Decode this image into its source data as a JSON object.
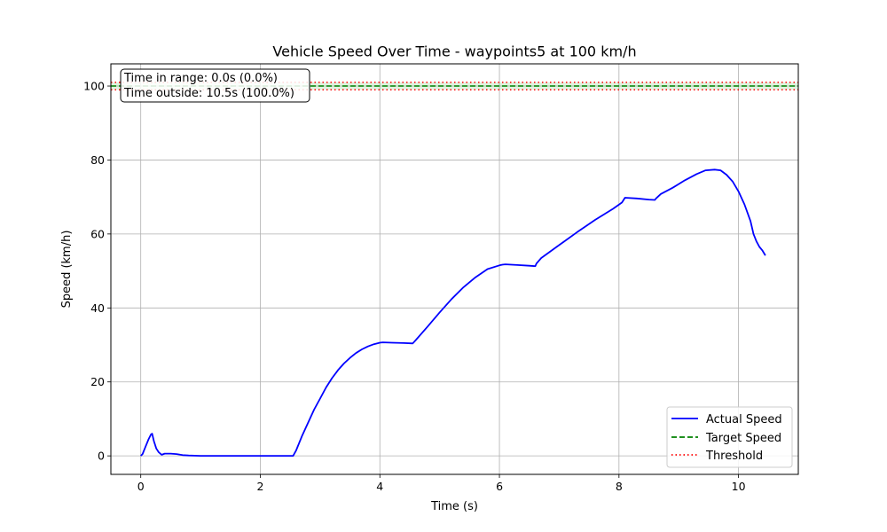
{
  "chart_data": {
    "type": "line",
    "title": "Vehicle Speed Over Time - waypoints5 at 100 km/h",
    "xlabel": "Time (s)",
    "ylabel": "Speed (km/h)",
    "xlim": [
      -0.5,
      11.0
    ],
    "ylim": [
      -5,
      106
    ],
    "xticks": [
      0,
      2,
      4,
      6,
      8,
      10
    ],
    "yticks": [
      0,
      20,
      40,
      60,
      80,
      100
    ],
    "grid": true,
    "legend_position": "lower-right",
    "series": [
      {
        "name": "Actual Speed",
        "color": "#0000ff",
        "style": "solid",
        "x": [
          0.0,
          0.03,
          0.08,
          0.13,
          0.17,
          0.19,
          0.22,
          0.26,
          0.3,
          0.35,
          0.4,
          0.45,
          0.5,
          0.6,
          0.7,
          0.8,
          1.0,
          1.5,
          2.0,
          2.3,
          2.55,
          2.6,
          2.7,
          2.8,
          2.9,
          3.0,
          3.1,
          3.2,
          3.3,
          3.4,
          3.5,
          3.6,
          3.7,
          3.8,
          3.9,
          4.0,
          4.05,
          4.2,
          4.4,
          4.55,
          4.6,
          4.8,
          5.0,
          5.2,
          5.4,
          5.6,
          5.8,
          6.0,
          6.05,
          6.1,
          6.3,
          6.5,
          6.6,
          6.62,
          6.7,
          7.0,
          7.3,
          7.6,
          7.9,
          8.05,
          8.1,
          8.3,
          8.5,
          8.6,
          8.62,
          8.7,
          8.9,
          9.1,
          9.3,
          9.45,
          9.6,
          9.7,
          9.8,
          9.9,
          10.0,
          10.1,
          10.2,
          10.25,
          10.3,
          10.35,
          10.4,
          10.45
        ],
        "y": [
          0,
          0.5,
          2.5,
          4.5,
          5.8,
          6.0,
          4.0,
          2.0,
          1.0,
          0.3,
          0.6,
          0.6,
          0.6,
          0.5,
          0.2,
          0.1,
          0.0,
          0.0,
          0.0,
          0.0,
          0.0,
          1.5,
          5.5,
          9.0,
          12.5,
          15.5,
          18.5,
          21.0,
          23.2,
          25.0,
          26.5,
          27.8,
          28.8,
          29.6,
          30.2,
          30.6,
          30.7,
          30.6,
          30.5,
          30.4,
          31.3,
          35.0,
          38.8,
          42.4,
          45.6,
          48.3,
          50.5,
          51.5,
          51.7,
          51.8,
          51.6,
          51.4,
          51.3,
          52.0,
          53.5,
          57.0,
          60.5,
          63.8,
          66.8,
          68.5,
          69.8,
          69.6,
          69.3,
          69.2,
          69.6,
          70.8,
          72.5,
          74.5,
          76.2,
          77.2,
          77.4,
          77.2,
          76.0,
          74.2,
          71.5,
          68.0,
          63.5,
          60.0,
          58.0,
          56.5,
          55.5,
          54.2
        ]
      },
      {
        "name": "Target Speed",
        "color": "#008000",
        "style": "dashed",
        "y_const": 100
      },
      {
        "name": "Threshold",
        "color": "#ff0000",
        "style": "dotted",
        "y_const": [
          99,
          101
        ]
      }
    ],
    "annotation": {
      "line1": "Time in range: 0.0s (0.0%)",
      "line2": "Time outside: 10.5s (100.0%)"
    }
  }
}
